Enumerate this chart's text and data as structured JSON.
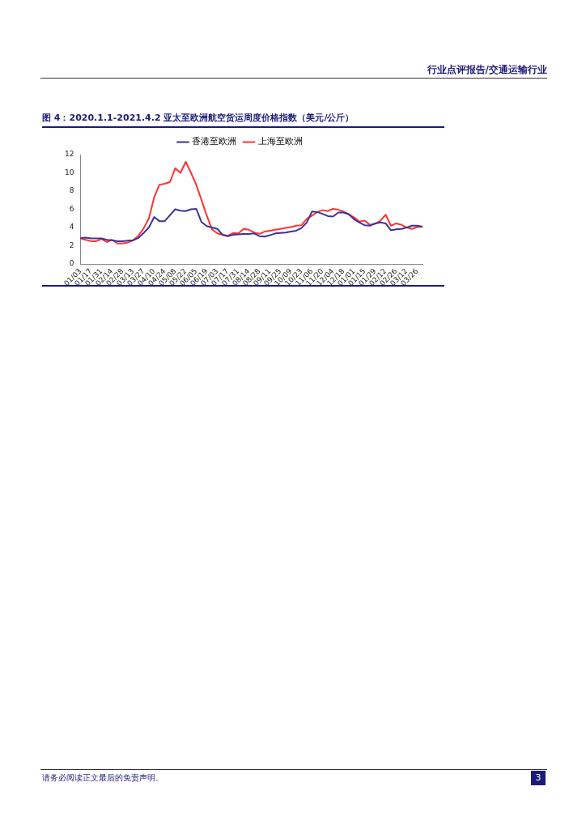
{
  "chart_data": {
    "type": "line",
    "title": "图 4：2020.1.1-2021.4.2 亚太至欧洲航空货运周度价格指数（美元/公斤）",
    "annotations": [
      "行业点评报告/交通运输行业",
      "请务必阅读正文最后的免责声明。",
      "3"
    ],
    "categories": [
      "01/03",
      null,
      "01/17",
      null,
      "01/31",
      null,
      "02/14",
      null,
      "02/28",
      null,
      "03/13",
      null,
      "03/27",
      null,
      "04/10",
      null,
      "04/24",
      null,
      "05/08",
      null,
      "05/22",
      null,
      "06/05",
      null,
      "06/19",
      null,
      "07/03",
      null,
      "07/17",
      null,
      "07/31",
      null,
      "08/14",
      null,
      "08/28",
      null,
      "09/11",
      null,
      "09/25",
      null,
      "10/09",
      null,
      "10/23",
      null,
      "11/06",
      null,
      "11/20",
      null,
      "12/04",
      null,
      "12/18",
      null,
      "01/01",
      null,
      "01/15",
      null,
      "01/29",
      null,
      "02/12",
      null,
      "02/26",
      null,
      "03/12",
      null,
      "03/26",
      null
    ],
    "series": [
      {
        "name": "香港至欧洲",
        "color": "#3a3496",
        "values": [
          2.85,
          2.9,
          2.8,
          2.8,
          2.8,
          2.65,
          2.6,
          2.5,
          2.5,
          2.55,
          2.6,
          2.85,
          3.4,
          4.0,
          5.15,
          4.7,
          4.7,
          5.35,
          6.0,
          5.85,
          5.8,
          6.0,
          6.05,
          4.6,
          4.15,
          4.0,
          3.85,
          3.2,
          3.05,
          3.2,
          3.25,
          3.3,
          3.3,
          3.35,
          3.05,
          3.0,
          3.15,
          3.35,
          3.4,
          3.45,
          3.55,
          3.65,
          3.95,
          4.55,
          5.75,
          5.7,
          5.5,
          5.25,
          5.2,
          5.65,
          5.65,
          5.45,
          4.9,
          4.55,
          4.25,
          4.2,
          4.45,
          4.55,
          4.45,
          3.7,
          3.8,
          3.85,
          4.0,
          4.2,
          4.2,
          4.1
        ]
      },
      {
        "name": "上海至欧洲",
        "color": "#ff3333",
        "values": [
          2.8,
          2.65,
          2.5,
          2.5,
          2.75,
          2.4,
          2.65,
          2.25,
          2.25,
          2.35,
          2.6,
          3.1,
          3.9,
          5.0,
          7.3,
          8.7,
          8.8,
          9.0,
          10.5,
          10.0,
          11.2,
          10.0,
          8.7,
          7.0,
          5.3,
          3.8,
          3.35,
          3.2,
          3.1,
          3.4,
          3.35,
          3.85,
          3.75,
          3.45,
          3.3,
          3.55,
          3.65,
          3.75,
          3.85,
          3.95,
          4.05,
          4.2,
          4.25,
          4.95,
          5.3,
          5.7,
          5.9,
          5.8,
          6.05,
          5.95,
          5.75,
          5.45,
          5.1,
          4.65,
          4.75,
          4.3,
          4.4,
          4.75,
          5.4,
          4.2,
          4.45,
          4.3,
          4.0,
          3.85,
          4.05,
          4.1
        ]
      }
    ],
    "ylim": [
      0,
      12
    ],
    "yticks": [
      0,
      2,
      4,
      6,
      8,
      10,
      12
    ],
    "grid": false,
    "legend": "top",
    "marker": "none",
    "line_style": "solid"
  }
}
